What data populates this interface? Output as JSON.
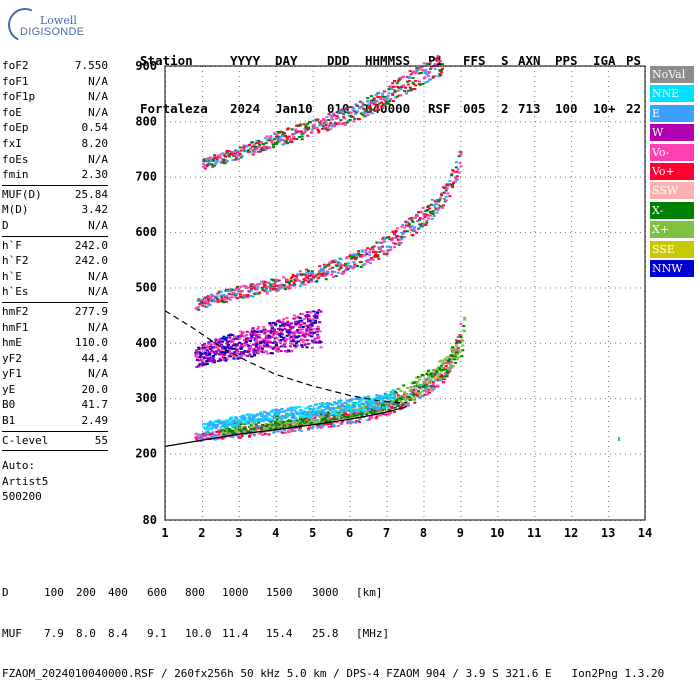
{
  "logo": {
    "line1": "Lowell",
    "line2": "DIGISONDE"
  },
  "header": {
    "labels": [
      "Station",
      "YYYY",
      "DAY",
      "DDD",
      "HHMMSS",
      "P1",
      "FFS",
      "S",
      "AXN",
      "PPS",
      "IGA",
      "PS"
    ],
    "values": [
      "Fortaleza",
      "2024",
      "Jan10",
      "010",
      "040000",
      "RSF",
      "005",
      "2",
      "713",
      "100",
      "10+",
      "22"
    ]
  },
  "params": [
    [
      {
        "label": "foF2",
        "value": "7.550"
      },
      {
        "label": "foF1",
        "value": "N/A"
      },
      {
        "label": "foF1p",
        "value": "N/A"
      },
      {
        "label": "foE",
        "value": "N/A"
      },
      {
        "label": "foEp",
        "value": "0.54"
      },
      {
        "label": "fxI",
        "value": "8.20"
      },
      {
        "label": "foEs",
        "value": "N/A"
      },
      {
        "label": "fmin",
        "value": "2.30"
      }
    ],
    [
      {
        "label": "MUF(D)",
        "value": "25.84"
      },
      {
        "label": "M(D)",
        "value": "3.42"
      },
      {
        "label": "D",
        "value": "N/A"
      }
    ],
    [
      {
        "label": "h`F",
        "value": "242.0"
      },
      {
        "label": "h`F2",
        "value": "242.0"
      },
      {
        "label": "h`E",
        "value": "N/A"
      },
      {
        "label": "h`Es",
        "value": "N/A"
      }
    ],
    [
      {
        "label": "hmF2",
        "value": "277.9"
      },
      {
        "label": "hmF1",
        "value": "N/A"
      },
      {
        "label": "hmE",
        "value": "110.0"
      },
      {
        "label": "yF2",
        "value": "44.4"
      },
      {
        "label": "yF1",
        "value": "N/A"
      },
      {
        "label": "yE",
        "value": "20.0"
      },
      {
        "label": "B0",
        "value": "41.7"
      },
      {
        "label": "B1",
        "value": "2.49"
      }
    ],
    [
      {
        "label": "C-level",
        "value": "55"
      }
    ]
  ],
  "autoscale": [
    "Auto:",
    "Artist5",
    "500200"
  ],
  "legend": [
    {
      "label": "NoVal",
      "color": "#8c8c8c"
    },
    {
      "label": "NNE",
      "color": "#00e0ff"
    },
    {
      "label": "E",
      "color": "#3ca0ff"
    },
    {
      "label": "W",
      "color": "#b000b0"
    },
    {
      "label": "Vo-",
      "color": "#ff40b0"
    },
    {
      "label": "Vo+",
      "color": "#ff0030"
    },
    {
      "label": "SSW",
      "color": "#ffb0b0"
    },
    {
      "label": "X-",
      "color": "#008000"
    },
    {
      "label": "X+",
      "color": "#80c040"
    },
    {
      "label": "SSE",
      "color": "#c8c800"
    },
    {
      "label": "NNW",
      "color": "#0000d0"
    }
  ],
  "bottom": {
    "d_label": "D",
    "d_values": [
      "100",
      "200",
      "400",
      "600",
      "800",
      "1000",
      "1500",
      "3000",
      "[km]"
    ],
    "muf_label": "MUF",
    "muf_values": [
      "7.9",
      "8.0",
      "8.4",
      "9.1",
      "10.0",
      "11.4",
      "15.4",
      "25.8",
      "[MHz]"
    ],
    "footer": "FZAOM_2024010040000.RSF / 260fx256h 50 kHz 5.0 km / DPS-4 FZAOM 904 / 3.9 S 321.6 E   Ion2Png 1.3.20"
  },
  "chart_data": {
    "type": "scatter",
    "xlim": [
      1,
      14
    ],
    "ylim": [
      80,
      900
    ],
    "xticks": [
      1,
      2,
      3,
      4,
      5,
      6,
      7,
      8,
      9,
      10,
      11,
      12,
      13,
      14
    ],
    "yticks": [
      80,
      200,
      300,
      400,
      500,
      600,
      700,
      800,
      900
    ],
    "grid": true,
    "legend_position": "right",
    "traces": [
      {
        "mode": "O",
        "x": [
          1.8,
          2.5,
          3.5,
          4.5,
          5.5,
          6.5,
          7.0,
          7.5,
          8.0,
          8.5,
          8.8,
          9.0
        ],
        "y": [
          230,
          236,
          243,
          252,
          262,
          275,
          285,
          300,
          318,
          345,
          380,
          430
        ],
        "spread": 8,
        "colors": [
          "#ff0030",
          "#ff40b0",
          "#3ca0ff"
        ]
      },
      {
        "mode": "X",
        "x": [
          2.5,
          3.5,
          4.5,
          5.5,
          6.5,
          7.0,
          7.5,
          8.0,
          8.5,
          9.0,
          9.1
        ],
        "y": [
          245,
          253,
          262,
          272,
          285,
          295,
          310,
          330,
          355,
          395,
          440
        ],
        "spread": 10,
        "colors": [
          "#008000",
          "#80c040"
        ]
      },
      {
        "mode": "E",
        "x": [
          2.0,
          3.0,
          4.0,
          5.0,
          6.0,
          6.8,
          7.2
        ],
        "y": [
          250,
          262,
          272,
          280,
          288,
          296,
          306
        ],
        "spread": 7,
        "colors": [
          "#3ca0ff",
          "#00e0ff"
        ]
      },
      {
        "mode": "2hop",
        "x": [
          1.8,
          2.5,
          3.5,
          4.5,
          5.5,
          6.5,
          7.0,
          7.5,
          8.0,
          8.5,
          8.8,
          9.0
        ],
        "y": [
          470,
          485,
          500,
          515,
          535,
          560,
          580,
          605,
          630,
          665,
          700,
          740
        ],
        "spread": 10,
        "colors": [
          "#ff0030",
          "#ff40b0",
          "#3ca0ff",
          "#008000"
        ]
      },
      {
        "mode": "3hop",
        "x": [
          2.0,
          3.0,
          4.0,
          5.0,
          6.0,
          6.5,
          7.0,
          7.5,
          8.0,
          8.5
        ],
        "y": [
          725,
          745,
          770,
          790,
          815,
          830,
          850,
          870,
          890,
          905
        ],
        "spread": 10,
        "colors": [
          "#ff0030",
          "#ff40b0",
          "#3ca0ff",
          "#008000"
        ]
      },
      {
        "mode": "W",
        "x": [
          1.8,
          2.2,
          2.8,
          3.5,
          4.2,
          4.8,
          5.2
        ],
        "y": [
          375,
          385,
          395,
          405,
          415,
          425,
          430
        ],
        "spread": 18,
        "colors": [
          "#b000b0",
          "#ff40b0",
          "#0000d0"
        ]
      }
    ],
    "profile": {
      "x": [
        1.0,
        2.0,
        3.0,
        4.0,
        5.0,
        5.8,
        6.5,
        7.0,
        7.4,
        7.55
      ],
      "y": [
        213,
        224,
        235,
        243,
        252,
        260,
        268,
        275,
        282,
        285
      ]
    },
    "muf_curve": {
      "x": [
        1.0,
        1.8,
        2.5,
        3.2,
        4.0,
        5.0,
        6.0,
        6.8,
        7.3,
        7.55
      ],
      "y": [
        458,
        425,
        393,
        368,
        343,
        322,
        305,
        295,
        292,
        292
      ]
    }
  }
}
